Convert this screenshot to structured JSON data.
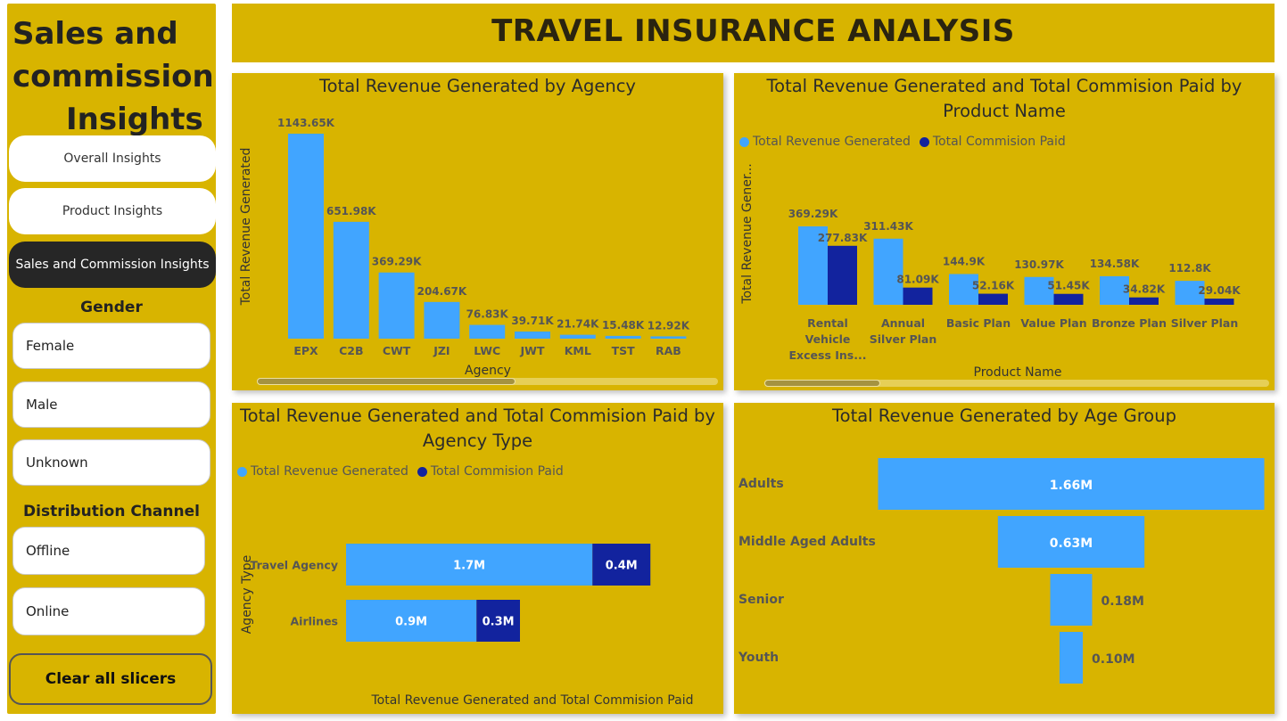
{
  "sidebar": {
    "title_lines": [
      "Sales and",
      "commission",
      "Insights"
    ],
    "nav": [
      {
        "label": "Overall Insights",
        "active": false
      },
      {
        "label": "Product Insights",
        "active": false
      },
      {
        "label": "Sales and Commission Insights",
        "active": true
      }
    ],
    "gender_heading": "Gender",
    "gender_options": [
      "Female",
      "Male",
      "Unknown"
    ],
    "channel_heading": "Distribution Channel",
    "channel_options": [
      "Offline",
      "Online"
    ],
    "clear_label": "Clear all slicers"
  },
  "header": {
    "title": "TRAVEL INSURANCE ANALYSIS"
  },
  "colors": {
    "panel": "#d8b400",
    "series1": "#41a5ff",
    "series2": "#12239e",
    "axis_text": "#555555"
  },
  "chart_data": [
    {
      "type": "bar",
      "title": "Total Revenue Generated by Agency",
      "xlabel": "Agency",
      "ylabel": "Total Revenue Generated",
      "categories": [
        "EPX",
        "C2B",
        "CWT",
        "JZI",
        "LWC",
        "JWT",
        "KML",
        "TST",
        "RAB"
      ],
      "values": [
        1143.65,
        651.98,
        369.29,
        204.67,
        76.83,
        39.71,
        21.74,
        15.48,
        12.92
      ],
      "data_labels": [
        "1143.65K",
        "651.98K",
        "369.29K",
        "204.67K",
        "76.83K",
        "39.71K",
        "21.74K",
        "15.48K",
        "12.92K"
      ],
      "ylim": [
        0,
        1143.65
      ]
    },
    {
      "type": "bar",
      "title": "Total Revenue Generated and Total Commision Paid by Product Name",
      "xlabel": "Product Name",
      "ylabel": "Total Revenue Gener...",
      "legend": "top-left",
      "categories": [
        "Rental Vehicle Excess Ins...",
        "Annual Silver Plan",
        "Basic Plan",
        "Value Plan",
        "Bronze Plan",
        "Silver Plan"
      ],
      "category_lines": [
        [
          "Rental",
          "Vehicle",
          "Excess Ins..."
        ],
        [
          "Annual",
          "Silver Plan"
        ],
        [
          "Basic Plan"
        ],
        [
          "Value Plan"
        ],
        [
          "Bronze Plan"
        ],
        [
          "Silver Plan"
        ]
      ],
      "series": [
        {
          "name": "Total Revenue Generated",
          "values": [
            369.29,
            311.43,
            144.9,
            130.97,
            134.58,
            112.8
          ],
          "labels": [
            "369.29K",
            "311.43K",
            "144.9K",
            "130.97K",
            "134.58K",
            "112.8K"
          ]
        },
        {
          "name": "Total Commision Paid",
          "values": [
            277.83,
            81.09,
            52.16,
            51.45,
            34.82,
            29.04
          ],
          "labels": [
            "277.83K",
            "81.09K",
            "52.16K",
            "51.45K",
            "34.82K",
            "29.04K"
          ]
        }
      ],
      "ylim": [
        0,
        369.29
      ]
    },
    {
      "type": "bar",
      "orientation": "horizontal",
      "stacked": true,
      "title": "Total Revenue Generated and Total Commision Paid by Agency Type",
      "xlabel": "Total Revenue Generated and Total Commision Paid",
      "ylabel": "Agency Type",
      "legend": "top-left",
      "categories": [
        "Travel Agency",
        "Airlines"
      ],
      "series": [
        {
          "name": "Total Revenue Generated",
          "values": [
            1.7,
            0.9
          ],
          "labels": [
            "1.7M",
            "0.9M"
          ]
        },
        {
          "name": "Total Commision Paid",
          "values": [
            0.4,
            0.3
          ],
          "labels": [
            "0.4M",
            "0.3M"
          ]
        }
      ]
    },
    {
      "type": "bar",
      "orientation": "horizontal",
      "subtype": "funnel",
      "title": "Total Revenue Generated by Age Group",
      "categories": [
        "Adults",
        "Middle Aged Adults",
        "Senior",
        "Youth"
      ],
      "values": [
        1.66,
        0.63,
        0.18,
        0.1
      ],
      "data_labels": [
        "1.66M",
        "0.63M",
        "0.18M",
        "0.10M"
      ]
    }
  ]
}
